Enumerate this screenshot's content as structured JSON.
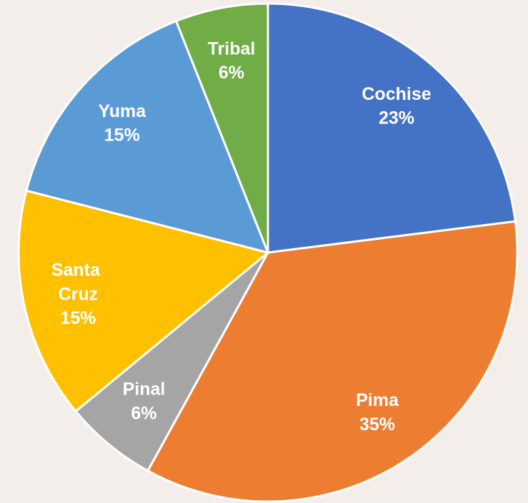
{
  "chart_data": {
    "type": "pie",
    "categories": [
      "Cochise",
      "Pima",
      "Pinal",
      "Santa Cruz",
      "Yuma",
      "Tribal"
    ],
    "values": [
      23,
      35,
      6,
      15,
      15,
      6
    ],
    "value_labels": [
      "23%",
      "35%",
      "6%",
      "15%",
      "15%",
      "6%"
    ],
    "colors": [
      "#4472c4",
      "#ed7d31",
      "#a5a5a5",
      "#ffc000",
      "#5b9bd5",
      "#70ad47"
    ]
  }
}
